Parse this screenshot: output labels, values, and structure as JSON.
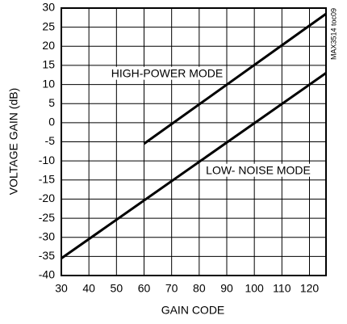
{
  "chart_data": {
    "type": "line",
    "xlabel": "GAIN CODE",
    "ylabel": "VOLTAGE GAIN (dB)",
    "annotations": [
      "HIGH-POWER MODE",
      "LOW- NOISE MODE",
      "MAX3514 toc09"
    ],
    "series": [
      {
        "name": "HIGH-POWER MODE",
        "color": "#000000",
        "x": [
          60,
          126
        ],
        "values": [
          -5.5,
          28.5
        ]
      },
      {
        "name": "LOW- NOISE MODE",
        "color": "#000000",
        "x": [
          30,
          126
        ],
        "values": [
          -35.5,
          13
        ]
      }
    ],
    "xlim": [
      30,
      126
    ],
    "xticks": [
      30,
      40,
      50,
      60,
      70,
      80,
      90,
      100,
      110,
      120
    ],
    "ylim": [
      -40,
      30
    ],
    "yticks": [
      -40,
      -35,
      -30,
      -25,
      -20,
      -15,
      -10,
      -5,
      0,
      5,
      10,
      15,
      20,
      25,
      30
    ],
    "grid": true
  }
}
